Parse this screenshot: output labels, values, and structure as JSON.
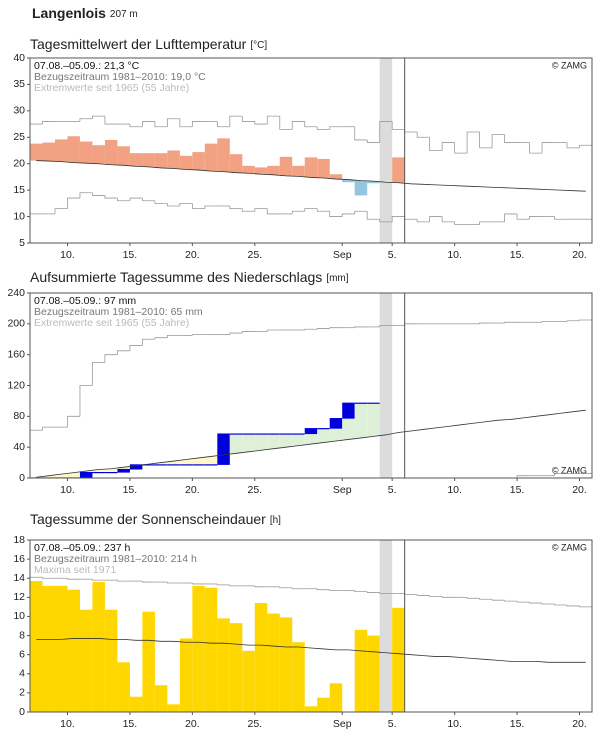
{
  "header": {
    "title": "Langenlois",
    "elevation": "207 m"
  },
  "chart_data": [
    {
      "type": "anomaly",
      "title": "Tagesmittelwert der Lufttemperatur",
      "unit": "[°C]",
      "notes": [
        "07.08.–05.09.: 21,3 °C",
        "Bezugszeitraum 1981–2010: 19,0 °C",
        "Extremwerte seit 1965 (55 Jahre)"
      ],
      "copyright": "© ZAMG",
      "copyright_position": "top-right",
      "categories": [
        null,
        null,
        null,
        "10.",
        null,
        null,
        null,
        null,
        "15.",
        null,
        null,
        null,
        null,
        "20.",
        null,
        null,
        null,
        null,
        "25.",
        null,
        null,
        null,
        null,
        null,
        null,
        "Sep",
        null,
        null,
        null,
        "5.",
        null,
        null,
        null,
        null,
        "10.",
        null,
        null,
        null,
        null,
        "15.",
        null,
        null,
        null,
        null,
        "20."
      ],
      "values": [
        23.8,
        24.0,
        24.6,
        25.2,
        24.2,
        23.5,
        24.5,
        23.3,
        22.0,
        22.0,
        22.0,
        22.5,
        21.5,
        22.2,
        23.8,
        24.8,
        21.8,
        19.6,
        19.3,
        19.6,
        21.3,
        19.6,
        21.2,
        20.9,
        18.0,
        16.5,
        14.0,
        16.3,
        null,
        21.2,
        null,
        null,
        null,
        null,
        null,
        null,
        null,
        null,
        null,
        null,
        null,
        null,
        null,
        null,
        null
      ],
      "reference": [
        20.6,
        20.5,
        20.4,
        20.2,
        20.1,
        20.0,
        19.8,
        19.7,
        19.5,
        19.4,
        19.2,
        19.1,
        18.9,
        18.8,
        18.6,
        18.5,
        18.3,
        18.2,
        18.0,
        17.9,
        17.7,
        17.6,
        17.4,
        17.3,
        17.1,
        17.0,
        16.8,
        16.7,
        16.5,
        16.4,
        16.2,
        16.1,
        16.0,
        15.9,
        15.8,
        15.7,
        15.6,
        15.5,
        15.4,
        15.3,
        15.2,
        15.1,
        15.0,
        14.9,
        14.8
      ],
      "upper": [
        27.5,
        28,
        28,
        28,
        28.5,
        29,
        27.5,
        27.5,
        27,
        28,
        27,
        28.5,
        27,
        28,
        28,
        27,
        29,
        28,
        27.5,
        29,
        26.5,
        28,
        27,
        26.5,
        27,
        27,
        24.5,
        24,
        28,
        26.5,
        26,
        25,
        22.5,
        24,
        22,
        26,
        23,
        25.5,
        24,
        24,
        22,
        24,
        24,
        23,
        23.5
      ],
      "lower": [
        10.5,
        10.5,
        11.5,
        13.5,
        14.5,
        14,
        13.5,
        13,
        13.5,
        13,
        12.5,
        12,
        12.5,
        11.5,
        12,
        12,
        11.5,
        11,
        11.5,
        10.5,
        10.5,
        11,
        11.5,
        11,
        10,
        10.5,
        11,
        9.5,
        9,
        10,
        9.5,
        9,
        10,
        9,
        8.5,
        8.5,
        9,
        9,
        10.5,
        9.5,
        10,
        10,
        9.5,
        9.5,
        9.5
      ],
      "color_above": "#f2a283",
      "color_below": "#92c5de",
      "reference_color": "#333333",
      "extreme_color": "#9a9a9a",
      "ylim": [
        5,
        40
      ],
      "yticks": [
        5,
        10,
        15,
        20,
        25,
        30,
        35,
        40
      ],
      "grid": false
    },
    {
      "type": "area",
      "title": "Aufsummierte Tagessumme des Niederschlags",
      "unit": "[mm]",
      "notes": [
        "07.08.–05.09.: 97 mm",
        "Bezugszeitraum 1981–2010: 65 mm",
        "Extremwerte seit 1965 (55 Jahre)"
      ],
      "copyright": "© ZAMG",
      "copyright_position": "bottom-right",
      "categories": [
        null,
        null,
        null,
        "10.",
        null,
        null,
        null,
        null,
        "15.",
        null,
        null,
        null,
        null,
        "20.",
        null,
        null,
        null,
        null,
        "25.",
        null,
        null,
        null,
        null,
        null,
        null,
        "Sep",
        null,
        null,
        null,
        "5.",
        null,
        null,
        null,
        null,
        "10.",
        null,
        null,
        null,
        null,
        "15.",
        null,
        null,
        null,
        null,
        "20."
      ],
      "values": [
        0,
        0,
        0,
        0,
        7,
        7,
        7,
        11,
        17,
        17,
        17,
        17,
        17,
        17,
        17,
        57,
        57,
        57,
        57,
        57,
        57,
        57,
        64,
        64,
        77,
        97,
        97,
        97,
        null,
        null,
        null,
        null,
        null,
        null,
        null,
        null,
        null,
        null,
        null,
        null,
        null,
        null,
        null,
        null,
        null
      ],
      "reference": [
        1,
        3,
        5,
        7,
        9,
        11,
        12,
        14,
        16,
        18,
        20,
        22,
        24,
        26,
        28,
        30,
        32,
        34,
        36,
        38,
        40,
        42,
        44,
        46,
        48,
        50,
        52,
        54,
        56,
        59,
        61,
        63,
        65,
        67,
        69,
        71,
        73,
        75,
        76,
        78,
        80,
        82,
        84,
        86,
        88
      ],
      "upper": [
        62,
        66,
        66,
        80,
        120,
        150,
        160,
        165,
        172,
        180,
        182,
        185,
        185,
        186,
        186,
        186,
        188,
        190,
        190,
        192,
        192,
        192,
        193,
        194,
        195,
        195,
        196,
        196,
        198,
        198,
        200,
        200,
        200,
        200,
        200,
        200,
        201,
        201,
        202,
        202,
        202,
        203,
        203,
        204,
        205
      ],
      "lower": [
        0,
        0,
        0,
        0,
        0,
        0,
        0,
        0,
        0,
        0,
        0,
        0,
        0,
        0,
        0,
        0,
        0,
        0,
        0,
        0,
        0,
        0,
        0,
        0,
        0,
        0,
        0,
        0,
        0,
        0,
        0,
        0,
        0,
        0,
        0,
        0,
        0,
        0,
        0,
        3,
        3,
        3,
        6,
        6,
        6
      ],
      "color": "#0000dd",
      "color_above": "#dff0d8",
      "color_below": "#fff8c4",
      "reference_color": "#333333",
      "extreme_color": "#9a9a9a",
      "ylim": [
        0,
        240
      ],
      "yticks": [
        0,
        40,
        80,
        120,
        160,
        200,
        240
      ],
      "grid": false
    },
    {
      "type": "bar",
      "title": "Tagessumme der Sonnenscheindauer",
      "unit": "[h]",
      "notes": [
        "07.08.–05.09.: 237 h",
        "Bezugszeitraum 1981–2010: 214 h",
        "Maxima seit 1971"
      ],
      "copyright": "© ZAMG",
      "copyright_position": "top-right",
      "categories": [
        null,
        null,
        null,
        "10.",
        null,
        null,
        null,
        null,
        "15.",
        null,
        null,
        null,
        null,
        "20.",
        null,
        null,
        null,
        null,
        "25.",
        null,
        null,
        null,
        null,
        null,
        null,
        "Sep",
        null,
        null,
        null,
        "5.",
        null,
        null,
        null,
        null,
        "10.",
        null,
        null,
        null,
        null,
        "15.",
        null,
        null,
        null,
        null,
        "20."
      ],
      "values": [
        13.7,
        13.2,
        13.2,
        12.8,
        10.7,
        13.6,
        10.7,
        5.2,
        1.6,
        10.5,
        2.8,
        0.8,
        7.7,
        13.2,
        13.0,
        9.8,
        9.3,
        6.4,
        11.4,
        10.3,
        9.9,
        7.3,
        0.6,
        1.5,
        3.0,
        0,
        8.6,
        8.0,
        null,
        10.9,
        null,
        null,
        null,
        null,
        null,
        null,
        null,
        null,
        null,
        null,
        null,
        null,
        null,
        null,
        null
      ],
      "reference": [
        7.6,
        7.6,
        7.6,
        7.7,
        7.7,
        7.7,
        7.6,
        7.6,
        7.5,
        7.5,
        7.4,
        7.4,
        7.3,
        7.3,
        7.2,
        7.2,
        7.1,
        7.0,
        7.0,
        6.9,
        6.8,
        6.8,
        6.7,
        6.6,
        6.5,
        6.5,
        6.4,
        6.3,
        6.2,
        6.1,
        6.0,
        5.9,
        5.8,
        5.8,
        5.7,
        5.6,
        5.5,
        5.4,
        5.3,
        5.3,
        5.3,
        5.2,
        5.2,
        5.2,
        5.2
      ],
      "upper": [
        14.1,
        14.0,
        14.0,
        13.9,
        13.9,
        13.8,
        13.8,
        13.7,
        13.7,
        13.6,
        13.6,
        13.5,
        13.5,
        13.4,
        13.4,
        13.3,
        13.2,
        13.2,
        13.1,
        13.1,
        13.0,
        12.9,
        12.9,
        12.8,
        12.7,
        12.7,
        12.6,
        12.5,
        12.4,
        12.4,
        12.3,
        12.2,
        12.1,
        12.0,
        12.0,
        11.9,
        11.8,
        11.7,
        11.6,
        11.5,
        11.4,
        11.3,
        11.2,
        11.1,
        11.0
      ],
      "color": "#ffd700",
      "reference_color": "#333333",
      "extreme_color": "#9a9a9a",
      "ylim": [
        0,
        18
      ],
      "yticks": [
        0,
        2,
        4,
        6,
        8,
        10,
        12,
        14,
        16,
        18
      ],
      "grid": false
    }
  ]
}
